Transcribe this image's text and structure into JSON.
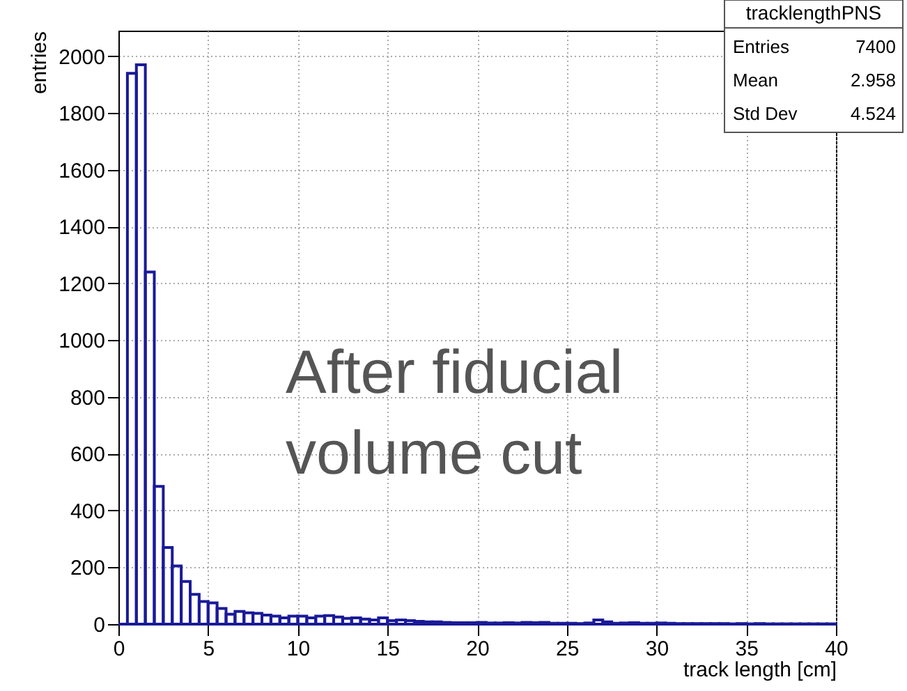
{
  "chart_data": {
    "type": "histogram",
    "xlabel": "track length [cm]",
    "ylabel": "entries",
    "bins": [
      0,
      0.5,
      1,
      1.5,
      2,
      2.5,
      3,
      3.5,
      4,
      4.5,
      5,
      5.5,
      6,
      6.5,
      7,
      7.5,
      8,
      8.5,
      9,
      9.5,
      10,
      10.5,
      11,
      11.5,
      12,
      12.5,
      13,
      13.5,
      14,
      14.5,
      15,
      15.5,
      16,
      16.5,
      17,
      17.5,
      18,
      18.5,
      19,
      19.5,
      20,
      20.5,
      21,
      21.5,
      22,
      22.5,
      23,
      23.5,
      24,
      24.5,
      25,
      25.5,
      26,
      26.5,
      27,
      27.5,
      28,
      28.5,
      29,
      29.5,
      30,
      30.5,
      31,
      31.5,
      32,
      32.5,
      33,
      33.5,
      34,
      34.5,
      35,
      35.5,
      36,
      36.5,
      37,
      37.5,
      38,
      38.5,
      39,
      39.5,
      40
    ],
    "values": [
      0,
      1940,
      1970,
      1240,
      485,
      270,
      205,
      150,
      105,
      80,
      75,
      55,
      35,
      45,
      40,
      38,
      32,
      28,
      22,
      28,
      28,
      22,
      28,
      30,
      25,
      20,
      22,
      18,
      15,
      22,
      12,
      15,
      12,
      10,
      8,
      8,
      6,
      5,
      5,
      5,
      6,
      4,
      4,
      5,
      4,
      6,
      5,
      6,
      3,
      3,
      3,
      2,
      4,
      15,
      8,
      3,
      4,
      5,
      3,
      3,
      4,
      3,
      2,
      2,
      2,
      2,
      2,
      2,
      1,
      2,
      1,
      2,
      1,
      1,
      1,
      1,
      1,
      1,
      1,
      1
    ],
    "color": "#1a1a99",
    "xlim": [
      0,
      40
    ],
    "xticks": [
      0,
      5,
      10,
      15,
      20,
      25,
      30,
      35,
      40
    ],
    "ylim": [
      0,
      2090
    ],
    "yticks": [
      0,
      200,
      400,
      600,
      800,
      {
        "value": 1000,
        "label": "1000"
      },
      {
        "value": 1200,
        "label": "1200"
      },
      {
        "value": 1400,
        "label": "1400"
      },
      {
        "value": 1600,
        "label": "1600"
      },
      {
        "value": 1800,
        "label": "1800"
      },
      {
        "value": 2000,
        "label": "2000"
      }
    ],
    "grid": true,
    "annotations": [
      "tracklengthPNS",
      "Entries",
      "7400",
      "Mean",
      "2.958",
      "Std Dev",
      "4.524",
      "After fiducial\nvolume cut"
    ]
  }
}
